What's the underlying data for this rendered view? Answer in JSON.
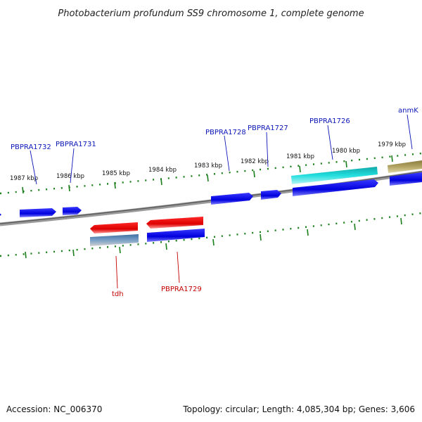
{
  "title": "Photobacterium profundum SS9 chromosome 1, complete genome",
  "footer": {
    "accession": "Accession: NC_006370",
    "summary": "Topology: circular; Length: 4,085,304 bp; Genes: 3,606"
  },
  "scale_labels": [
    "1987 kbp",
    "1986 kbp",
    "1985 kbp",
    "1984 kbp",
    "1983 kbp",
    "1982 kbp",
    "1981 kbp",
    "1980 kbp",
    "1979 kbp"
  ],
  "top_strand_genes": [
    "PBPRA1732",
    "PBPRA1731",
    "PBPRA1728",
    "PBPRA1727",
    "PBPRA1726",
    "anmK"
  ],
  "bottom_strand_genes": [
    "tdh",
    "PBPRA1729"
  ],
  "colors": {
    "backbone": "#7a7a7a",
    "ticks": "#1a7f1a",
    "forward_cds": "#0000e0",
    "reverse_cds": "#e00000",
    "highlight_cyan": "#19c6c6",
    "highlight_olive": "#a89a58",
    "highlight_steel": "#4a7fb0",
    "label_blue": "#0b16b8",
    "label_red": "#c40000"
  }
}
